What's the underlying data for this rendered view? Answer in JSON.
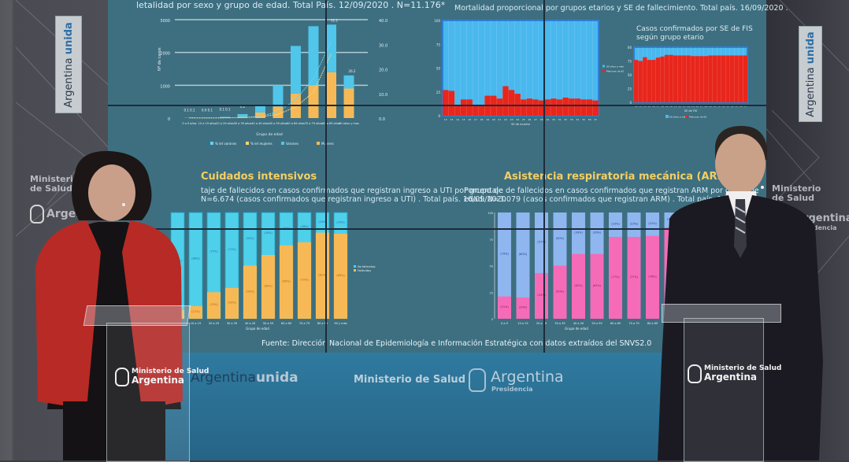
{
  "scene": {
    "left_banner": {
      "text_regular": "Argentina",
      "text_bold": "unida"
    },
    "right_banner": {
      "text_regular": "Argentina",
      "text_bold": "unida"
    },
    "left_wall_logo": {
      "line1": "Ministerio",
      "line2": "de Salud",
      "line3": "Argentina"
    },
    "right_wall_logo": {
      "line1": "Ministerio",
      "line2": "de Salud",
      "line3": "Argentina",
      "line4": "Presidencia"
    },
    "lower_wall": {
      "argentina_unida_regular": "Argentina",
      "argentina_unida_bold": "unida",
      "ministerio": "Ministerio de Salud",
      "argentina": "Argentina",
      "presidencia": "Presidencia"
    },
    "podium_left": {
      "line1": "Ministerio de Salud",
      "line2": "Argentina"
    },
    "podium_right": {
      "line1": "Ministerio de Salud",
      "line2": "Argentina"
    },
    "speakers": [
      "speaker-left",
      "speaker-right"
    ]
  },
  "screen": {
    "top_left_title": "letalidad por sexo y grupo de edad. Total País. 12/09/2020 . N=11.176*",
    "top_right_title": "Mortalidad proporcional por grupos etarios y SE de fallecimiento. Total país. 16/09/2020 .",
    "top_right_inset_title_1": "Casos confirmados por SE de FIS",
    "top_right_inset_title_2": "según grupo etario",
    "uti_title": "Cuidados intensivos",
    "uti_sub_1": "taje de fallecidos en casos confirmados que registran ingreso a UTI por grupo de",
    "uti_sub_2": "N=6.674 (casos confirmados que registran ingreso a UTI) . Total país. 16/09/2020",
    "arm_title": "Asistencia respiratoria mecánica (ARM)",
    "arm_sub_1": "Porcentaje de fallecidos en casos confirmados que registran ARM por grupo de",
    "arm_sub_2": "edad. N=3.079 (casos confirmados que registran ARM) . Total país. 16/09/201",
    "source": "Fuente: Dirección Nacional de Epidemiología e Información Estratégica con datos extraídos del SNVS2.0"
  },
  "chart_data": [
    {
      "id": "deaths_by_sex_age",
      "type": "bar",
      "title": "letalidad por sexo y grupo de edad. Total País. 12/09/2020 . N=11.176*",
      "xlabel": "Grupo de edad",
      "ylabel": "Nº de casos",
      "y2label": "% de letalidad",
      "categories": [
        "0 a 9 años",
        "10 a 19 años",
        "20 a 29 años",
        "30 a 39 años",
        "40 a 49 años",
        "50 a 59 años",
        "60 a 69 años",
        "70 a 79 años",
        "80 a 89 años",
        "90 años y mas"
      ],
      "stacked": true,
      "ylim": [
        0,
        3000
      ],
      "yticks": [
        0,
        1000,
        2000,
        3000
      ],
      "y2lim": [
        0,
        40
      ],
      "y2ticks": [
        "0.0",
        "10.0",
        "20.0",
        "30.0",
        "40.0"
      ],
      "series": [
        {
          "name": "Mujeres",
          "values": [
            5,
            5,
            15,
            40,
            170,
            350,
            750,
            1000,
            1400,
            900
          ],
          "color": "#f7b955"
        },
        {
          "name": "Varones",
          "values": [
            5,
            5,
            20,
            80,
            230,
            650,
            1450,
            1800,
            1450,
            400
          ],
          "color": "#4fc6ea"
        }
      ],
      "lines": [
        {
          "name": "% let varones",
          "values": [
            0.1,
            0.0,
            0.1,
            0.2,
            0.8,
            2.5,
            7.5,
            16.0,
            31.1,
            null
          ]
        },
        {
          "name": "% let mujeres",
          "values": [
            0.1,
            0.1,
            0.1,
            0.2,
            0.5,
            1.5,
            4.5,
            10.5,
            26.2,
            null
          ]
        }
      ],
      "data_labels": [
        "0.1 0.1",
        "0.0 0.1",
        "0.1 0.1",
        "0.2",
        "",
        "",
        "",
        "",
        "31.1",
        "26.2"
      ],
      "legend": [
        "% let varones",
        "% let mujeres",
        "Varones",
        "Mujeres"
      ],
      "legend_position": "bottom"
    },
    {
      "id": "proportional_mortality",
      "type": "area",
      "title": "Mortalidad proporcional por grupos etarios y SE de fallecimiento. Total país. 16/09/2020 .",
      "xlabel": "SE de muerte",
      "ylabel": "%",
      "ylim": [
        0,
        100
      ],
      "yticks": [
        0,
        25,
        50,
        75,
        100
      ],
      "x": [
        12,
        13,
        14,
        15,
        16,
        17,
        18,
        19,
        20,
        21,
        22,
        23,
        24,
        25,
        26,
        27,
        28,
        29,
        30,
        31,
        32,
        33,
        34,
        35,
        36,
        37
      ],
      "series": [
        {
          "name": "60 años y más",
          "color": "#49b8ee"
        },
        {
          "name": "Menores de 60",
          "values": [
            27,
            26,
            10,
            17,
            17,
            10,
            11,
            21,
            21,
            18,
            31,
            27,
            23,
            17,
            18,
            17,
            16,
            17,
            18,
            17,
            19,
            18,
            18,
            17,
            17,
            16
          ],
          "color": "#e8261c"
        }
      ],
      "legend_position": "right"
    },
    {
      "id": "confirmed_by_se_fis",
      "type": "area",
      "title": "Casos confirmados por SE de FIS según grupo etario",
      "xlabel": "SE de FIS",
      "ylim": [
        0,
        100
      ],
      "yticks": [
        0,
        25,
        50,
        75,
        100
      ],
      "x": [
        12,
        13,
        14,
        15,
        16,
        17,
        18,
        19,
        20,
        21,
        22,
        23,
        24,
        25,
        26,
        27,
        28,
        29,
        30,
        31,
        32,
        33,
        34,
        35,
        36,
        37
      ],
      "series": [
        {
          "name": "60 años y más",
          "color": "#49b8ee"
        },
        {
          "name": "Menores de 60",
          "values": [
            77,
            75,
            82,
            77,
            77,
            81,
            83,
            86,
            86,
            85,
            85,
            85,
            85,
            84,
            84,
            84,
            84,
            85,
            85,
            85,
            85,
            85,
            85,
            85,
            85,
            85
          ],
          "color": "#e8261c"
        }
      ],
      "legend_position": "bottom"
    },
    {
      "id": "uti",
      "type": "bar",
      "title": "Cuidados intensivos",
      "xlabel": "Grupo de edad",
      "stacked": true,
      "percent": true,
      "categories": [
        "0 a 9",
        "10 a 19",
        "20 a 29",
        "30 a 39",
        "40 a 49",
        "50 a 59",
        "60 a 69",
        "70 a 79",
        "80 a 89",
        "90 y más"
      ],
      "series": [
        {
          "name": "Fallecidos",
          "values": [
            8,
            12,
            25,
            29,
            50,
            60,
            69,
            72,
            81,
            80
          ],
          "color": "#f7b955"
        },
        {
          "name": "No fallecidos",
          "values": [
            92,
            88,
            75,
            71,
            50,
            40,
            31,
            28,
            19,
            20
          ],
          "color": "#4fd0ea"
        }
      ],
      "legend": [
        "No fallecidos",
        "Fallecidos"
      ],
      "legend_position": "right"
    },
    {
      "id": "arm",
      "type": "bar",
      "title": "Asistencia respiratoria mecánica (ARM)",
      "xlabel": "Grupo de edad",
      "stacked": true,
      "percent": true,
      "ylim": [
        0,
        100
      ],
      "yticks": [
        0,
        25,
        50,
        75,
        100
      ],
      "categories": [
        "0 a 9",
        "10 a 19",
        "20 a 29",
        "30 a 39",
        "40 a 49",
        "50 a 59",
        "60 a 69",
        "70 a 79",
        "80 a 89",
        "90 y más"
      ],
      "series": [
        {
          "name": "Fallecidos",
          "values": [
            21,
            20,
            43,
            50,
            61,
            61,
            77,
            77,
            78,
            86
          ],
          "color": "#f66bb8"
        },
        {
          "name": "No fallecidos",
          "values": [
            79,
            80,
            57,
            50,
            39,
            39,
            23,
            23,
            22,
            14
          ],
          "color": "#8fb6ef"
        }
      ],
      "data_labels_fallecidos": [
        "(21%)",
        "(20%)",
        "(43%)",
        "(50%)",
        "(61%)",
        "(61%)",
        "(77%)",
        "(77%)",
        "(78%)",
        ""
      ],
      "data_labels_no_fallecidos": [
        "(79%)",
        "(80%)",
        "(57%)",
        "(50%)",
        "(39%)",
        "(39%)",
        "(23%)",
        "(23%)",
        "(22%)",
        "(14%)"
      ]
    }
  ]
}
